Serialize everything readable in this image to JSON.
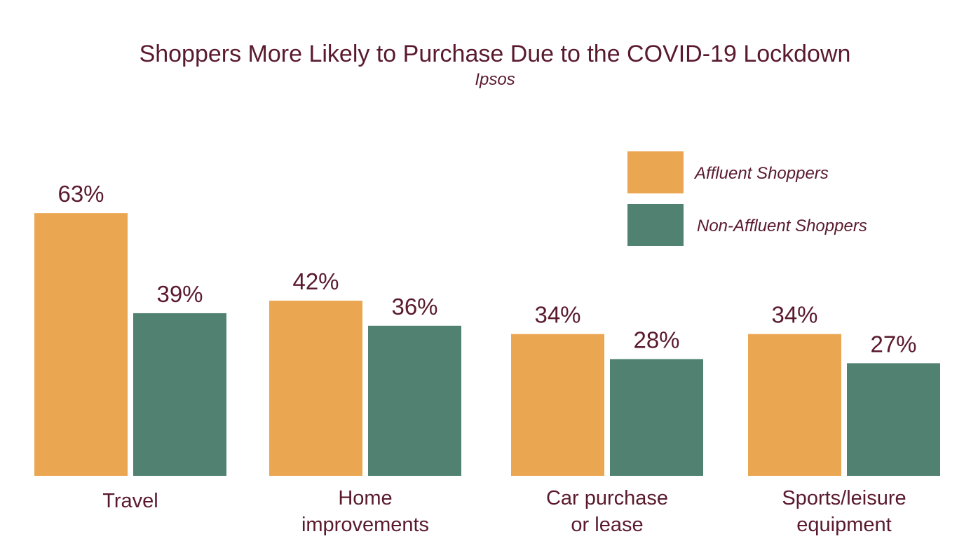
{
  "chart_data": {
    "type": "bar",
    "title": "Shoppers More Likely to Purchase Due to the COVID-19 Lockdown",
    "subtitle": "Ipsos",
    "categories": [
      [
        "Travel"
      ],
      [
        "Home",
        "improvements"
      ],
      [
        "Car purchase",
        "or lease"
      ],
      [
        "Sports/leisure",
        "equipment"
      ]
    ],
    "series": [
      {
        "name": "Affluent Shoppers",
        "color": "#EBA652",
        "values": [
          63,
          42,
          34,
          34
        ]
      },
      {
        "name": "Non-Affluent Shoppers",
        "color": "#518271",
        "values": [
          39,
          36,
          28,
          27
        ]
      }
    ],
    "value_format": "{v}%",
    "ylim": [
      0,
      70
    ],
    "grid": false,
    "axes_visible": false,
    "legend_position": "top-right"
  }
}
